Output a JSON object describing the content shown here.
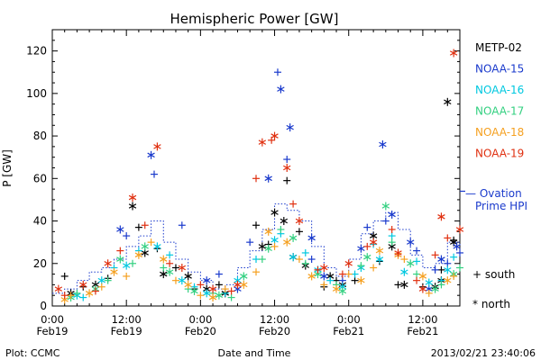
{
  "chart_data": {
    "type": "scatter",
    "title": "Hemispheric Power [GW]",
    "xlabel": "Date and Time",
    "ylabel": "P [GW]",
    "x_unit": "hours since 2013-02-19 00:00",
    "xlim": [
      0,
      66
    ],
    "ylim": [
      0,
      130
    ],
    "yticks": [
      0,
      20,
      40,
      60,
      80,
      100,
      120
    ],
    "xticks": [
      {
        "h": 0,
        "time": "0:00",
        "date": "Feb19"
      },
      {
        "h": 12,
        "time": "12:00",
        "date": "Feb19"
      },
      {
        "h": 24,
        "time": "0:00",
        "date": "Feb20"
      },
      {
        "h": 36,
        "time": "12:00",
        "date": "Feb20"
      },
      {
        "h": 48,
        "time": "0:00",
        "date": "Feb21"
      },
      {
        "h": 60,
        "time": "12:00",
        "date": "Feb21"
      }
    ],
    "series": [
      {
        "name": "METP-02",
        "color": "#000000",
        "north": [
          [
            3,
            6
          ],
          [
            7,
            10
          ],
          [
            13,
            47
          ],
          [
            15,
            25
          ],
          [
            18,
            15
          ],
          [
            22,
            14
          ],
          [
            25,
            8
          ],
          [
            28,
            6
          ],
          [
            34,
            28
          ],
          [
            36,
            44
          ],
          [
            37.5,
            40
          ],
          [
            39,
            23
          ],
          [
            41,
            19
          ],
          [
            45,
            14
          ],
          [
            47,
            10
          ],
          [
            52,
            33
          ],
          [
            55,
            28
          ],
          [
            57,
            10
          ],
          [
            62,
            9
          ],
          [
            63,
            12
          ],
          [
            64,
            96
          ],
          [
            65,
            30
          ]
        ],
        "south": [
          [
            2,
            14
          ],
          [
            5,
            9
          ],
          [
            9,
            13
          ],
          [
            14,
            37
          ],
          [
            17,
            27
          ],
          [
            20,
            18
          ],
          [
            23,
            8
          ],
          [
            27,
            10
          ],
          [
            33,
            38
          ],
          [
            35,
            29
          ],
          [
            38,
            59
          ],
          [
            40,
            35
          ],
          [
            44,
            9
          ],
          [
            46,
            12
          ],
          [
            49,
            12
          ],
          [
            53,
            21
          ],
          [
            56,
            10
          ],
          [
            60,
            9
          ],
          [
            63,
            17
          ],
          [
            65,
            31
          ]
        ]
      },
      {
        "name": "NOAA-15",
        "color": "#1a3acc",
        "north": [
          [
            11,
            36
          ],
          [
            16,
            71
          ],
          [
            25,
            12
          ],
          [
            30,
            8
          ],
          [
            35,
            60
          ],
          [
            37,
            102
          ],
          [
            38.5,
            84
          ],
          [
            42,
            32
          ],
          [
            44,
            14
          ],
          [
            50,
            27
          ],
          [
            53.5,
            76
          ],
          [
            55,
            43
          ],
          [
            58,
            30
          ],
          [
            61,
            8
          ],
          [
            63,
            22
          ],
          [
            65.5,
            28
          ]
        ],
        "south": [
          [
            12,
            33
          ],
          [
            16.5,
            62
          ],
          [
            21,
            38
          ],
          [
            27,
            15
          ],
          [
            32,
            30
          ],
          [
            36.5,
            110
          ],
          [
            38,
            69
          ],
          [
            42,
            22
          ],
          [
            47,
            12
          ],
          [
            51,
            37
          ],
          [
            54,
            40
          ],
          [
            59,
            26
          ],
          [
            62,
            17
          ],
          [
            64,
            20
          ],
          [
            66,
            25
          ]
        ]
      },
      {
        "name": "NOAA-16",
        "color": "#00c8e0",
        "north": [
          [
            4,
            5
          ],
          [
            8,
            12
          ],
          [
            12,
            19
          ],
          [
            17,
            28
          ],
          [
            21,
            12
          ],
          [
            25,
            6
          ],
          [
            30,
            12
          ],
          [
            36,
            31
          ],
          [
            39,
            23
          ],
          [
            43,
            17
          ],
          [
            47,
            9
          ],
          [
            50,
            18
          ],
          [
            53,
            22
          ],
          [
            57,
            16
          ],
          [
            61,
            11
          ],
          [
            64,
            17
          ]
        ],
        "south": [
          [
            5,
            4
          ],
          [
            10,
            18
          ],
          [
            14,
            26
          ],
          [
            19,
            24
          ],
          [
            23,
            9
          ],
          [
            28,
            6
          ],
          [
            33,
            22
          ],
          [
            37,
            34
          ],
          [
            41,
            25
          ],
          [
            45,
            12
          ],
          [
            49,
            15
          ],
          [
            52,
            29
          ],
          [
            55,
            33
          ],
          [
            59,
            21
          ],
          [
            63,
            12
          ],
          [
            65,
            23
          ]
        ]
      },
      {
        "name": "NOAA-17",
        "color": "#33d080",
        "north": [
          [
            3,
            4
          ],
          [
            7,
            8
          ],
          [
            11,
            22
          ],
          [
            15,
            28
          ],
          [
            19,
            16
          ],
          [
            23,
            7
          ],
          [
            27,
            5
          ],
          [
            31,
            14
          ],
          [
            35,
            27
          ],
          [
            39,
            32
          ],
          [
            43,
            15
          ],
          [
            47,
            7
          ],
          [
            51,
            23
          ],
          [
            54,
            47
          ],
          [
            58,
            20
          ],
          [
            62,
            8
          ],
          [
            65,
            15
          ]
        ],
        "south": [
          [
            4,
            6
          ],
          [
            9,
            12
          ],
          [
            13,
            20
          ],
          [
            18,
            18
          ],
          [
            22,
            8
          ],
          [
            26,
            6
          ],
          [
            29,
            4
          ],
          [
            34,
            22
          ],
          [
            37,
            36
          ],
          [
            41,
            20
          ],
          [
            46,
            10
          ],
          [
            50,
            19
          ],
          [
            55,
            30
          ],
          [
            59,
            15
          ],
          [
            63,
            10
          ],
          [
            66,
            18
          ]
        ]
      },
      {
        "name": "NOAA-18",
        "color": "#f5a020",
        "north": [
          [
            2,
            3
          ],
          [
            6,
            6
          ],
          [
            10,
            16
          ],
          [
            14,
            24
          ],
          [
            18,
            22
          ],
          [
            22,
            10
          ],
          [
            26,
            4
          ],
          [
            31,
            10
          ],
          [
            35,
            35
          ],
          [
            38,
            30
          ],
          [
            42,
            14
          ],
          [
            46,
            8
          ],
          [
            50,
            12
          ],
          [
            53,
            26
          ],
          [
            56,
            24
          ],
          [
            60,
            14
          ],
          [
            64,
            12
          ]
        ],
        "south": [
          [
            3,
            5
          ],
          [
            8,
            9
          ],
          [
            12,
            14
          ],
          [
            16,
            30
          ],
          [
            20,
            12
          ],
          [
            24,
            5
          ],
          [
            28,
            8
          ],
          [
            33,
            16
          ],
          [
            36,
            28
          ],
          [
            40,
            22
          ],
          [
            44,
            10
          ],
          [
            48,
            15
          ],
          [
            52,
            18
          ],
          [
            57,
            22
          ],
          [
            61,
            6
          ],
          [
            65,
            14
          ]
        ]
      },
      {
        "name": "NOAA-19",
        "color": "#e03010",
        "north": [
          [
            1,
            8
          ],
          [
            5,
            10
          ],
          [
            9,
            20
          ],
          [
            13,
            51
          ],
          [
            17,
            75
          ],
          [
            21,
            18
          ],
          [
            26,
            8
          ],
          [
            30,
            10
          ],
          [
            34,
            77
          ],
          [
            36,
            80
          ],
          [
            38,
            65
          ],
          [
            40,
            40
          ],
          [
            44,
            18
          ],
          [
            48,
            20
          ],
          [
            52,
            30
          ],
          [
            56,
            25
          ],
          [
            60,
            8
          ],
          [
            63,
            42
          ],
          [
            65,
            119
          ],
          [
            66,
            36
          ]
        ],
        "south": [
          [
            2,
            5
          ],
          [
            7,
            7
          ],
          [
            11,
            26
          ],
          [
            15,
            38
          ],
          [
            19,
            20
          ],
          [
            24,
            10
          ],
          [
            29,
            7
          ],
          [
            33,
            60
          ],
          [
            35.5,
            78
          ],
          [
            39,
            48
          ],
          [
            43,
            17
          ],
          [
            47,
            15
          ],
          [
            51,
            28
          ],
          [
            55,
            36
          ],
          [
            59,
            12
          ],
          [
            62,
            24
          ],
          [
            64,
            32
          ]
        ]
      }
    ],
    "ovation": {
      "name": "Ovation Prime HPI",
      "color": "#1a3acc",
      "points": [
        [
          0,
          6
        ],
        [
          2,
          8
        ],
        [
          4,
          12
        ],
        [
          6,
          16
        ],
        [
          8,
          18
        ],
        [
          10,
          22
        ],
        [
          12,
          28
        ],
        [
          14,
          33
        ],
        [
          16,
          40
        ],
        [
          18,
          30
        ],
        [
          20,
          22
        ],
        [
          22,
          16
        ],
        [
          24,
          12
        ],
        [
          26,
          8
        ],
        [
          28,
          10
        ],
        [
          30,
          18
        ],
        [
          32,
          26
        ],
        [
          34,
          36
        ],
        [
          36,
          48
        ],
        [
          38,
          45
        ],
        [
          40,
          40
        ],
        [
          42,
          28
        ],
        [
          44,
          18
        ],
        [
          46,
          14
        ],
        [
          48,
          22
        ],
        [
          50,
          34
        ],
        [
          52,
          40
        ],
        [
          54,
          44
        ],
        [
          56,
          36
        ],
        [
          58,
          24
        ],
        [
          60,
          18
        ],
        [
          62,
          20
        ],
        [
          64,
          30
        ],
        [
          66,
          28
        ]
      ],
      "marker_value": 54
    },
    "legend": {
      "position": "right",
      "south_label": "+ south",
      "north_label": "* north",
      "ovation_prefix": "— Ovation",
      "ovation_suffix": "Prime HPI"
    }
  },
  "footer": {
    "left": "Plot: CCMC",
    "center": "Date and Time",
    "right": "2013/02/21 23:40:06"
  }
}
